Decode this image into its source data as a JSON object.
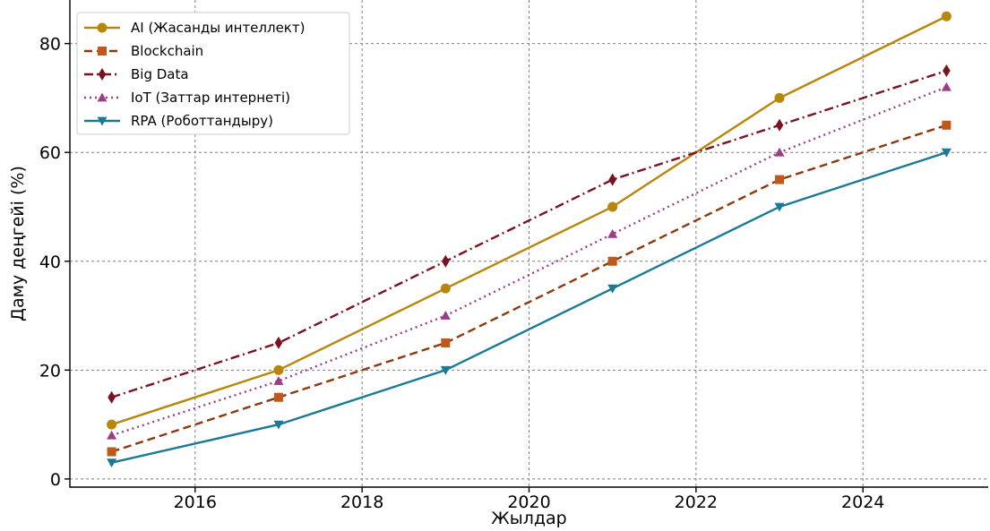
{
  "chart_data": {
    "type": "line",
    "title": "",
    "xlabel": "Жылдар",
    "ylabel": "Даму деңгейі (%)",
    "xlim": [
      2014.5,
      2025.5
    ],
    "ylim": [
      -1.5,
      88
    ],
    "x_ticks": [
      2016,
      2018,
      2020,
      2022,
      2024
    ],
    "y_ticks": [
      0,
      20,
      40,
      60,
      80
    ],
    "x": [
      2015,
      2017,
      2019,
      2021,
      2023,
      2025
    ],
    "grid": true,
    "legend_position": "top-left",
    "series": [
      {
        "name": "AI (Жасанды интеллект)",
        "values": [
          10,
          20,
          35,
          50,
          70,
          85
        ],
        "color": "#b8860b",
        "dash": "solid",
        "marker": "circle"
      },
      {
        "name": "Blockchain",
        "values": [
          5,
          15,
          25,
          40,
          55,
          65
        ],
        "color": "#8b3a0f",
        "dash": "dashed",
        "marker": "square",
        "marker_color": "#c0581a"
      },
      {
        "name": "Big Data",
        "values": [
          15,
          25,
          40,
          55,
          65,
          75
        ],
        "color": "#7b1222",
        "dash": "dashdot",
        "marker": "diamond"
      },
      {
        "name": "IoT (Заттар интернеті)",
        "values": [
          8,
          18,
          30,
          45,
          60,
          72
        ],
        "color": "#9c3d8a",
        "dash": "dotted",
        "marker": "triangle-up"
      },
      {
        "name": "RPA (Роботтандыру)",
        "values": [
          3,
          10,
          20,
          35,
          50,
          60
        ],
        "color": "#1a7a96",
        "dash": "solid",
        "marker": "triangle-down"
      }
    ]
  }
}
